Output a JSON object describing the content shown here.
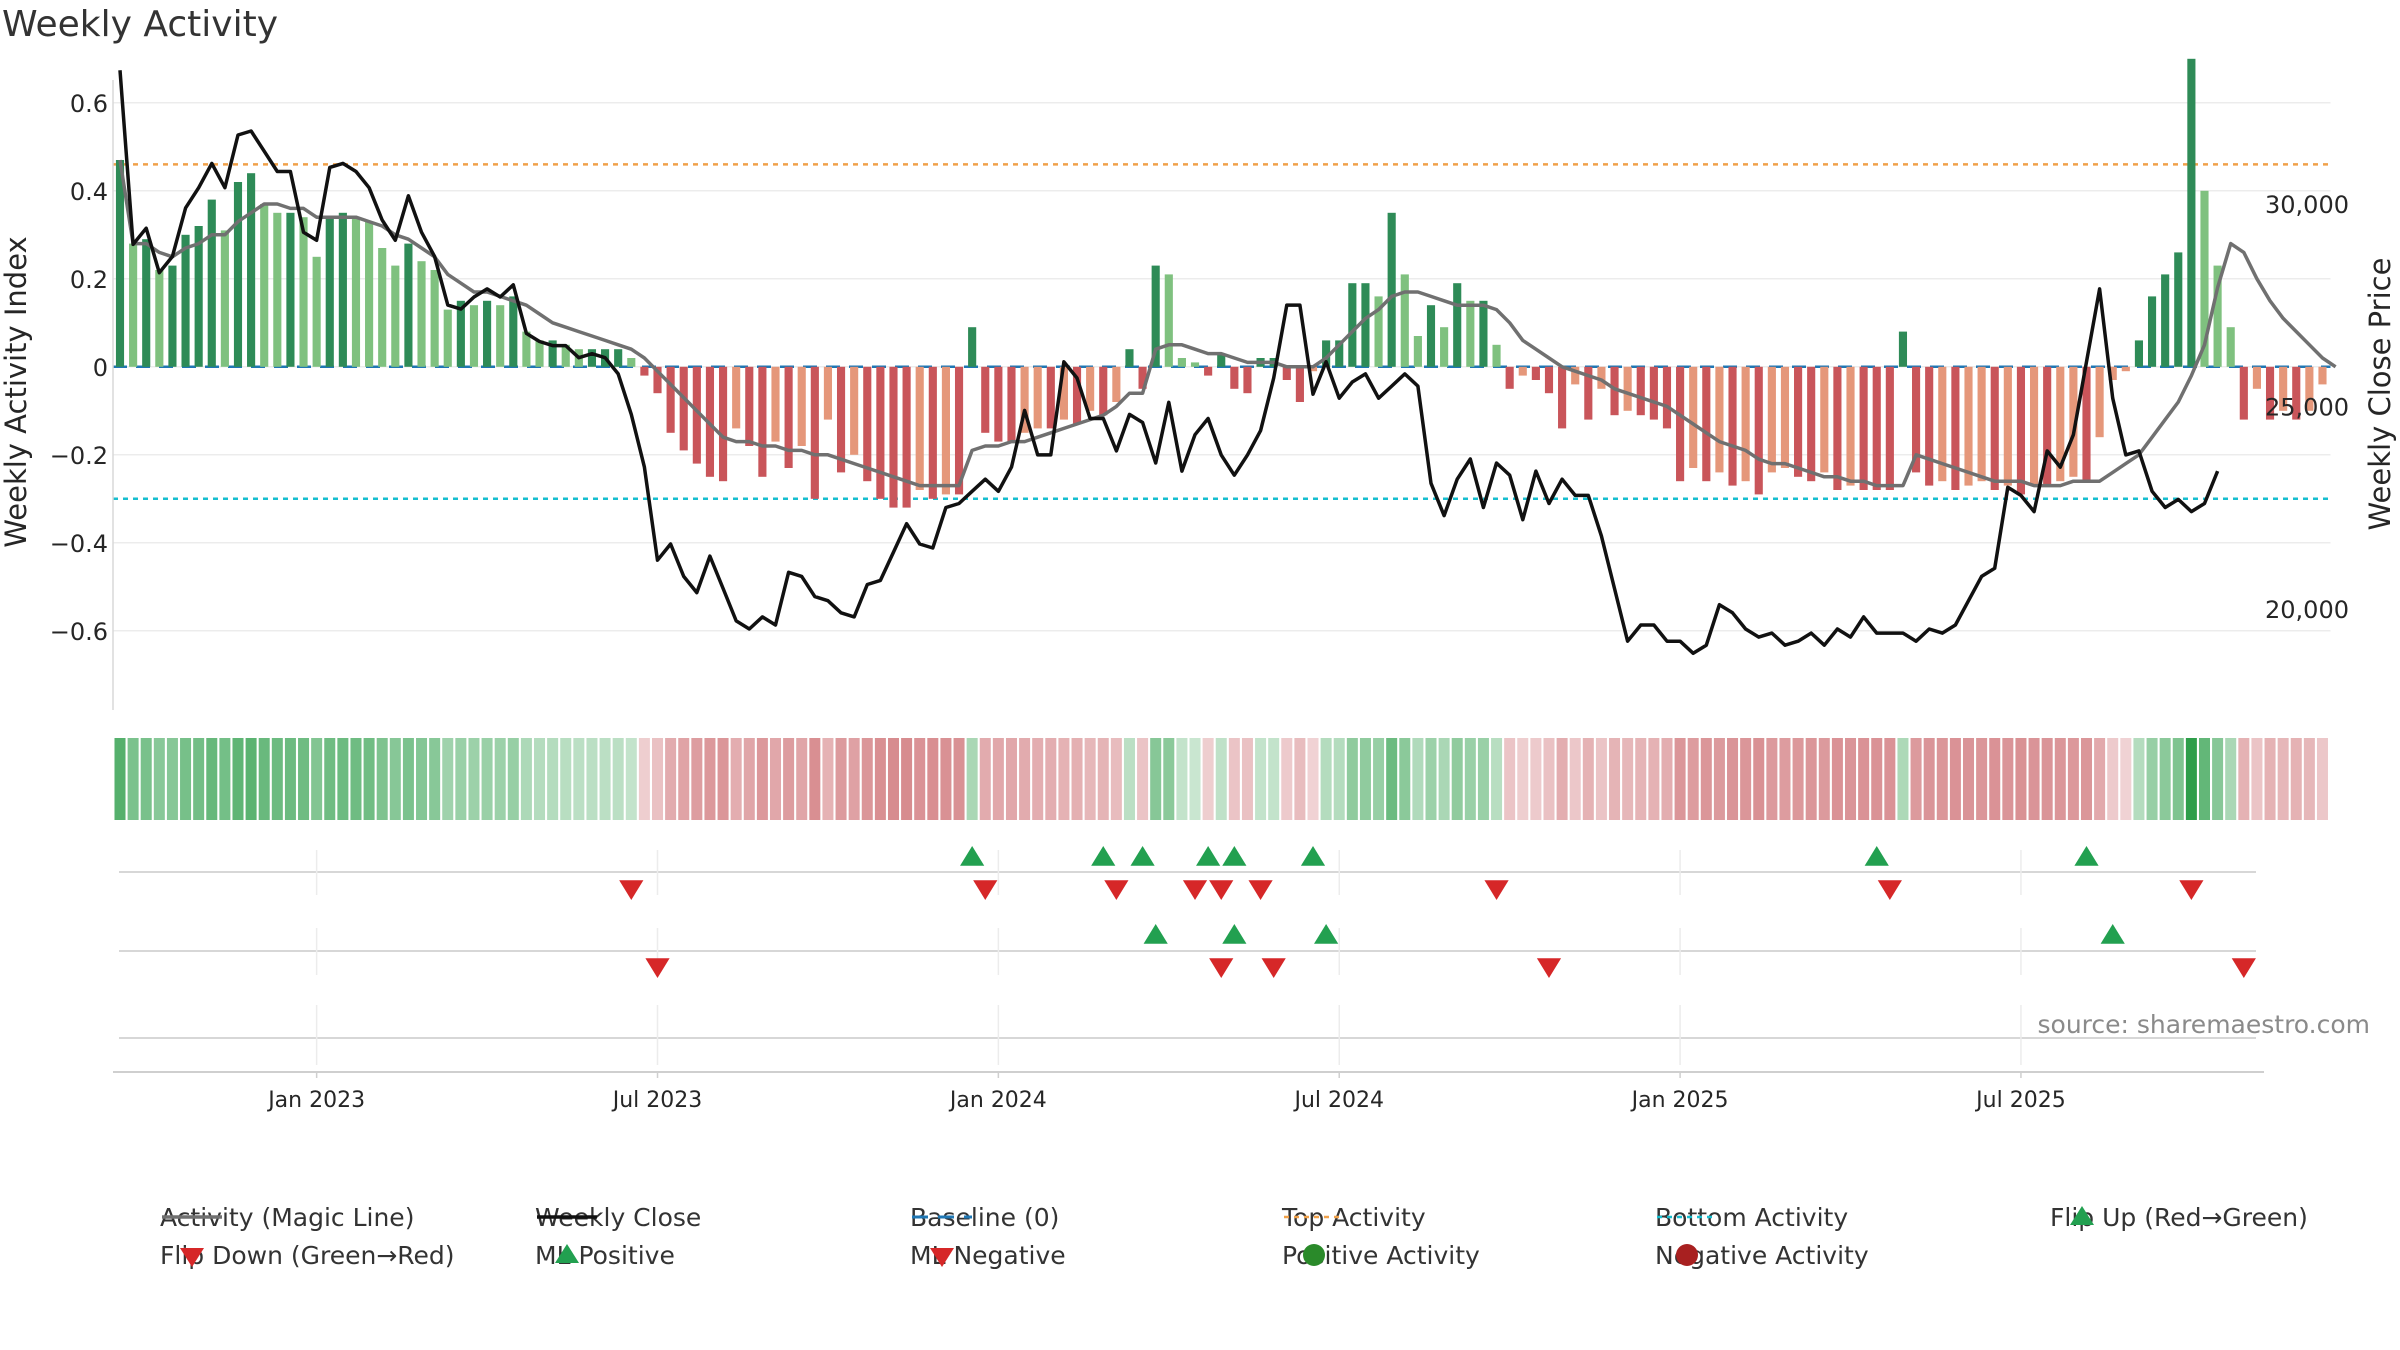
{
  "chart_data": {
    "type": "bar",
    "title": "Weekly Activity",
    "ylabel": "Weekly Activity Index",
    "y2label": "Weekly Close Price",
    "ylim": [
      -0.78,
      0.72
    ],
    "y2lim": [
      17500,
      33800
    ],
    "yticks": [
      0.6,
      0.4,
      0.2,
      0,
      -0.2,
      -0.4,
      -0.6
    ],
    "ytick_labels": [
      "0.6",
      "0.4",
      "0.2",
      "0",
      "−0.2",
      "−0.4",
      "−0.6"
    ],
    "y2ticks": [
      30000,
      25000,
      20000
    ],
    "y2tick_labels": [
      "30,000",
      "25,000",
      "20,000"
    ],
    "xticks": [
      {
        "label": "Jan 2023",
        "week": 15
      },
      {
        "label": "Jul 2023",
        "week": 41
      },
      {
        "label": "Jan 2024",
        "week": 67
      },
      {
        "label": "Jul 2024",
        "week": 93
      },
      {
        "label": "Jan 2025",
        "week": 119
      },
      {
        "label": "Jul 2025",
        "week": 145
      }
    ],
    "top_activity": 0.46,
    "bottom_activity": -0.3,
    "baseline": 0,
    "source": "source: sharemaestro.com",
    "activity": [
      0.47,
      0.28,
      0.29,
      0.22,
      0.23,
      0.3,
      0.32,
      0.38,
      0.31,
      0.42,
      0.44,
      0.37,
      0.35,
      0.35,
      0.34,
      0.25,
      0.34,
      0.35,
      0.34,
      0.33,
      0.27,
      0.23,
      0.28,
      0.24,
      0.22,
      0.13,
      0.15,
      0.14,
      0.15,
      0.14,
      0.16,
      0.08,
      0.06,
      0.06,
      0.05,
      0.04,
      0.04,
      0.04,
      0.04,
      0.02,
      -0.02,
      -0.06,
      -0.15,
      -0.19,
      -0.22,
      -0.25,
      -0.26,
      -0.14,
      -0.18,
      -0.25,
      -0.17,
      -0.23,
      -0.18,
      -0.3,
      -0.12,
      -0.24,
      -0.2,
      -0.26,
      -0.3,
      -0.32,
      -0.32,
      -0.28,
      -0.3,
      -0.29,
      -0.29,
      0.09,
      -0.15,
      -0.17,
      -0.17,
      -0.15,
      -0.14,
      -0.14,
      -0.12,
      -0.13,
      -0.1,
      -0.11,
      -0.08,
      0.04,
      -0.05,
      0.23,
      0.21,
      0.02,
      0.01,
      -0.02,
      0.03,
      -0.05,
      -0.06,
      0.02,
      0.02,
      -0.03,
      -0.08,
      -0.01,
      0.06,
      0.06,
      0.19,
      0.19,
      0.16,
      0.35,
      0.21,
      0.07,
      0.14,
      0.09,
      0.19,
      0.15,
      0.15,
      0.05,
      -0.05,
      -0.02,
      -0.03,
      -0.06,
      -0.14,
      -0.04,
      -0.12,
      -0.05,
      -0.11,
      -0.1,
      -0.11,
      -0.12,
      -0.14,
      -0.26,
      -0.23,
      -0.26,
      -0.24,
      -0.27,
      -0.26,
      -0.29,
      -0.24,
      -0.23,
      -0.25,
      -0.26,
      -0.24,
      -0.28,
      -0.27,
      -0.28,
      -0.28,
      -0.28,
      0.08,
      -0.24,
      -0.27,
      -0.26,
      -0.28,
      -0.27,
      -0.26,
      -0.28,
      -0.27,
      -0.29,
      -0.27,
      -0.27,
      -0.26,
      -0.25,
      -0.26,
      -0.16,
      -0.03,
      -0.01,
      0.06,
      0.16,
      0.21,
      0.26,
      0.7,
      0.4,
      0.23,
      0.09,
      -0.12,
      -0.05,
      -0.12,
      -0.1,
      -0.12,
      -0.1,
      -0.04
    ],
    "magic_line": [
      0.47,
      0.28,
      0.28,
      0.26,
      0.25,
      0.27,
      0.28,
      0.3,
      0.3,
      0.33,
      0.35,
      0.37,
      0.37,
      0.36,
      0.36,
      0.34,
      0.34,
      0.34,
      0.34,
      0.33,
      0.32,
      0.3,
      0.29,
      0.27,
      0.25,
      0.21,
      0.19,
      0.17,
      0.17,
      0.16,
      0.15,
      0.14,
      0.12,
      0.1,
      0.09,
      0.08,
      0.07,
      0.06,
      0.05,
      0.04,
      0.02,
      -0.01,
      -0.04,
      -0.07,
      -0.1,
      -0.13,
      -0.16,
      -0.17,
      -0.17,
      -0.18,
      -0.18,
      -0.19,
      -0.19,
      -0.2,
      -0.2,
      -0.21,
      -0.22,
      -0.23,
      -0.24,
      -0.25,
      -0.26,
      -0.27,
      -0.27,
      -0.27,
      -0.27,
      -0.19,
      -0.18,
      -0.18,
      -0.17,
      -0.17,
      -0.16,
      -0.15,
      -0.14,
      -0.13,
      -0.12,
      -0.11,
      -0.09,
      -0.06,
      -0.06,
      0.04,
      0.05,
      0.05,
      0.04,
      0.03,
      0.03,
      0.02,
      0.01,
      0.01,
      0.01,
      0.0,
      0.0,
      0.0,
      0.02,
      0.05,
      0.08,
      0.11,
      0.13,
      0.16,
      0.17,
      0.17,
      0.16,
      0.15,
      0.14,
      0.14,
      0.14,
      0.13,
      0.1,
      0.06,
      0.04,
      0.02,
      0.0,
      -0.01,
      -0.02,
      -0.03,
      -0.05,
      -0.06,
      -0.07,
      -0.08,
      -0.09,
      -0.11,
      -0.13,
      -0.15,
      -0.17,
      -0.18,
      -0.19,
      -0.21,
      -0.22,
      -0.22,
      -0.23,
      -0.24,
      -0.25,
      -0.25,
      -0.26,
      -0.26,
      -0.27,
      -0.27,
      -0.27,
      -0.2,
      -0.21,
      -0.22,
      -0.23,
      -0.24,
      -0.25,
      -0.26,
      -0.26,
      -0.26,
      -0.27,
      -0.27,
      -0.27,
      -0.26,
      -0.26,
      -0.26,
      -0.24,
      -0.22,
      -0.2,
      -0.16,
      -0.12,
      -0.08,
      -0.02,
      0.05,
      0.18,
      0.28,
      0.26,
      0.2,
      0.15,
      0.11,
      0.08,
      0.05,
      0.02,
      0.0
    ],
    "weekly_close": [
      33300,
      29000,
      29400,
      28300,
      28700,
      29900,
      30400,
      31000,
      30400,
      31700,
      31800,
      31300,
      30800,
      30800,
      29300,
      29100,
      30900,
      31000,
      30800,
      30400,
      29600,
      29100,
      30200,
      29300,
      28700,
      27500,
      27400,
      27700,
      27900,
      27700,
      28000,
      26800,
      26600,
      26500,
      26500,
      26200,
      26300,
      26200,
      25800,
      24800,
      23500,
      21200,
      21600,
      20800,
      20400,
      21300,
      20500,
      19700,
      19500,
      19800,
      19600,
      20900,
      20800,
      20300,
      20200,
      19900,
      19800,
      20600,
      20700,
      21400,
      22100,
      21600,
      21500,
      22500,
      22600,
      22900,
      23200,
      22900,
      23500,
      24900,
      23800,
      23800,
      26100,
      25700,
      24700,
      24700,
      23900,
      24800,
      24600,
      23600,
      25100,
      23400,
      24300,
      24700,
      23800,
      23300,
      23800,
      24400,
      25700,
      27500,
      27500,
      25300,
      26100,
      25200,
      25600,
      25800,
      25200,
      25500,
      25800,
      25500,
      23100,
      22300,
      23200,
      23700,
      22500,
      23600,
      23300,
      22200,
      23400,
      22600,
      23200,
      22800,
      22800,
      21800,
      20500,
      19200,
      19600,
      19600,
      19200,
      19200,
      18900,
      19100,
      20100,
      19900,
      19500,
      19300,
      19400,
      19100,
      19200,
      19400,
      19100,
      19500,
      19300,
      19800,
      19400,
      19400,
      19400,
      19200,
      19500,
      19400,
      19600,
      20200,
      20800,
      21000,
      23000,
      22800,
      22400,
      23900,
      23500,
      24300,
      26100,
      27900,
      25200,
      23800,
      23900,
      22900,
      22500,
      22700,
      22400,
      22600,
      23400
    ],
    "activity_flips_up": [
      65,
      75,
      78,
      83,
      85,
      91,
      134,
      150
    ],
    "activity_flips_down": [
      39,
      66,
      76,
      82,
      84,
      87,
      105,
      135,
      158
    ],
    "ml_flips_up": [
      79,
      85,
      92,
      152
    ],
    "ml_flips_down": [
      41,
      84,
      88,
      109,
      162
    ],
    "legend": [
      {
        "label": "Activity (Magic Line)",
        "symbol": "line-gray"
      },
      {
        "label": "Weekly Close",
        "symbol": "line-black"
      },
      {
        "label": "Baseline (0)",
        "symbol": "dash-blue"
      },
      {
        "label": "Top Activity",
        "symbol": "dot-orange"
      },
      {
        "label": "Bottom Activity",
        "symbol": "dot-cyan"
      },
      {
        "label": "Flip Up (Red→Green)",
        "symbol": "tri-up-green"
      },
      {
        "label": "Flip Down (Green→Red)",
        "symbol": "tri-down-red"
      },
      {
        "label": "ML Positive",
        "symbol": "tri-up-green"
      },
      {
        "label": "ML Negative",
        "symbol": "tri-down-red"
      },
      {
        "label": "Positive Activity",
        "symbol": "circle-green"
      },
      {
        "label": "Negative Activity",
        "symbol": "circle-red"
      }
    ]
  },
  "colors": {
    "pos_strong": "#2e8b57",
    "pos_weak": "#7fc17f",
    "neg_strong": "#c9555a",
    "neg_weak": "#e5977a",
    "magic_line": "#707070",
    "close": "#111111",
    "baseline": "#1f77b4",
    "top": "#f0a14a",
    "bottom": "#17becf",
    "flip_up": "#22a050",
    "flip_down": "#d62728",
    "pos_dot": "#2a8a2a",
    "neg_dot": "#a82020"
  }
}
